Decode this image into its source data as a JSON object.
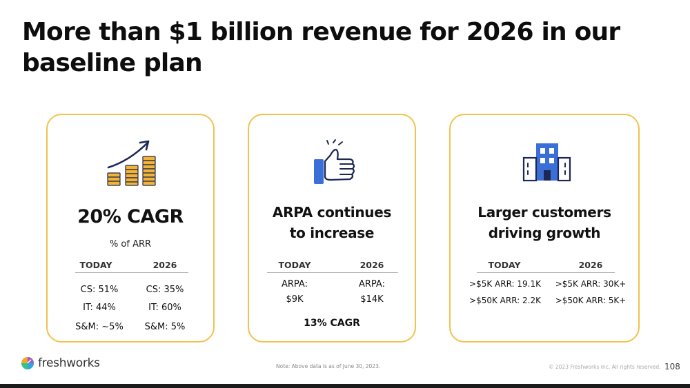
{
  "title": "More than $1 billion revenue for 2026 in our baseline plan",
  "cards": [
    {
      "icon": "growth-chart-icon",
      "heading": "20% CAGR",
      "subheading": "% of ARR",
      "col_today": "TODAY",
      "col_2026": "2026",
      "rows": [
        {
          "today": "CS: 51%",
          "future": "CS: 35%"
        },
        {
          "today": "IT: 44%",
          "future": "IT: 60%"
        },
        {
          "today": "S&M: ~5%",
          "future": "S&M: 5%"
        }
      ]
    },
    {
      "icon": "thumbs-up-icon",
      "heading_line1": "ARPA continues",
      "heading_line2": "to increase",
      "col_today": "TODAY",
      "col_2026": "2026",
      "rows": [
        {
          "today": "ARPA:",
          "future": "ARPA:"
        },
        {
          "today": "$9K",
          "future": "$14K"
        }
      ],
      "cagr": "13% CAGR"
    },
    {
      "icon": "office-building-icon",
      "heading_line1": "Larger customers",
      "heading_line2": "driving growth",
      "col_today": "TODAY",
      "col_2026": "2026",
      "rows": [
        {
          "today": ">$5K ARR: 19.1K",
          "future": ">$5K ARR: 30K+"
        },
        {
          "today": ">$50K ARR: 2.2K",
          "future": ">$50K ARR: 5K+"
        }
      ]
    }
  ],
  "footer": {
    "logo_text": "freshworks",
    "note": "Note: Above data is as of June 30, 2023.",
    "copyright": "© 2023 Freshworks Inc. All rights reserved.",
    "page_number": "108"
  },
  "colors": {
    "card_border": "#f2c14e",
    "coin": "#f3b434",
    "icon_blue": "#3b6fd8",
    "navy": "#1c2753"
  }
}
